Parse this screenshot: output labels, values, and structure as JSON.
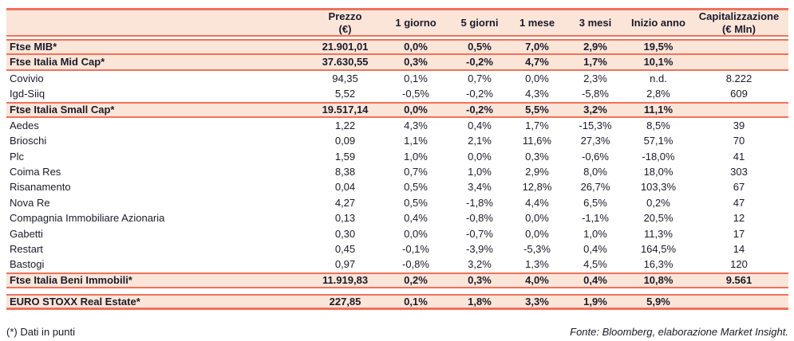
{
  "colors": {
    "accent": "#F1715B",
    "row_highlight_bg": "#FBE5D8",
    "text": "#1B1B2B"
  },
  "footer": {
    "footnote": "(*) Dati in punti",
    "source": "Fonte: Bloomberg, elaborazione Market Insight."
  },
  "table": {
    "header": {
      "bt": 3,
      "bb": 2,
      "gap": 3
    },
    "columns": [
      {
        "label": ""
      },
      {
        "label": "Prezzo\n(€)"
      },
      {
        "label": "1 giorno"
      },
      {
        "label": "5 giorni"
      },
      {
        "label": "1 mese"
      },
      {
        "label": "3 mesi"
      },
      {
        "label": "Inizio anno"
      },
      {
        "label": "Capitalizzazione\n(€ Mln)"
      }
    ],
    "rows": [
      {
        "style": "index",
        "bt": 2,
        "bb": 2,
        "gap": 0,
        "name": "Ftse MIB*",
        "values": [
          "21.901,01",
          "0,0%",
          "0,5%",
          "7,0%",
          "2,9%",
          "19,5%",
          ""
        ]
      },
      {
        "style": "index",
        "bt": 0,
        "bb": 2,
        "gap": 0,
        "name": "Ftse Italia Mid Cap*",
        "values": [
          "37.630,55",
          "0,3%",
          "-0,2%",
          "4,7%",
          "1,7%",
          "10,1%",
          ""
        ]
      },
      {
        "style": "stock",
        "bt": 0,
        "bb": 0,
        "gap": 0,
        "name": "Covivio",
        "values": [
          "94,35",
          "0,1%",
          "0,7%",
          "0,0%",
          "2,3%",
          "n.d.",
          "8.222"
        ]
      },
      {
        "style": "stock",
        "bt": 0,
        "bb": 0,
        "gap": 0,
        "name": "Igd-Siiq",
        "values": [
          "5,52",
          "-0,5%",
          "-0,2%",
          "4,3%",
          "-5,8%",
          "2,8%",
          "609"
        ]
      },
      {
        "style": "index",
        "bt": 2,
        "bb": 2,
        "gap": 0,
        "name": "Ftse Italia Small Cap*",
        "values": [
          "19.517,14",
          "0,0%",
          "-0,2%",
          "5,5%",
          "3,2%",
          "11,1%",
          ""
        ]
      },
      {
        "style": "stock",
        "bt": 0,
        "bb": 0,
        "gap": 0,
        "name": "Aedes",
        "values": [
          "1,22",
          "4,3%",
          "0,4%",
          "1,7%",
          "-15,3%",
          "8,5%",
          "39"
        ]
      },
      {
        "style": "stock",
        "bt": 0,
        "bb": 0,
        "gap": 0,
        "name": "Brioschi",
        "values": [
          "0,09",
          "1,1%",
          "2,1%",
          "11,6%",
          "27,3%",
          "57,1%",
          "70"
        ]
      },
      {
        "style": "stock",
        "bt": 0,
        "bb": 0,
        "gap": 0,
        "name": "Plc",
        "values": [
          "1,59",
          "1,0%",
          "0,0%",
          "0,3%",
          "-0,6%",
          "-18,0%",
          "41"
        ]
      },
      {
        "style": "stock",
        "bt": 0,
        "bb": 0,
        "gap": 0,
        "name": "Coima Res",
        "values": [
          "8,38",
          "0,7%",
          "1,0%",
          "2,9%",
          "8,0%",
          "18,0%",
          "303"
        ]
      },
      {
        "style": "stock",
        "bt": 0,
        "bb": 0,
        "gap": 0,
        "name": "Risanamento",
        "values": [
          "0,04",
          "0,5%",
          "3,4%",
          "12,8%",
          "26,7%",
          "103,3%",
          "67"
        ]
      },
      {
        "style": "stock",
        "bt": 0,
        "bb": 0,
        "gap": 0,
        "name": "Nova Re",
        "values": [
          "4,27",
          "0,5%",
          "-1,8%",
          "4,4%",
          "6,5%",
          "0,2%",
          "47"
        ]
      },
      {
        "style": "stock",
        "bt": 0,
        "bb": 0,
        "gap": 0,
        "name": "Compagnia Immobiliare Azionaria",
        "values": [
          "0,13",
          "0,4%",
          "-0,8%",
          "0,0%",
          "-1,1%",
          "20,5%",
          "12"
        ]
      },
      {
        "style": "stock",
        "bt": 0,
        "bb": 0,
        "gap": 0,
        "name": "Gabetti",
        "values": [
          "0,30",
          "0,0%",
          "-0,7%",
          "0,0%",
          "1,0%",
          "11,3%",
          "17"
        ]
      },
      {
        "style": "stock",
        "bt": 0,
        "bb": 0,
        "gap": 0,
        "name": "Restart",
        "values": [
          "0,45",
          "-0,1%",
          "-3,9%",
          "-5,3%",
          "0,4%",
          "164,5%",
          "14"
        ]
      },
      {
        "style": "stock",
        "bt": 0,
        "bb": 0,
        "gap": 0,
        "name": "Bastogi",
        "values": [
          "0,97",
          "-0,8%",
          "3,2%",
          "1,3%",
          "4,5%",
          "16,3%",
          "120"
        ]
      },
      {
        "style": "index",
        "bt": 2,
        "bb": 2,
        "gap": 7,
        "name": "Ftse Italia Beni Immobili*",
        "values": [
          "11.919,83",
          "0,2%",
          "0,3%",
          "4,0%",
          "0,4%",
          "10,8%",
          "9.561"
        ]
      },
      {
        "style": "index",
        "bt": 2,
        "bb": 3,
        "gap": 0,
        "name": "EURO STOXX Real Estate*",
        "values": [
          "227,85",
          "0,1%",
          "1,8%",
          "3,3%",
          "1,9%",
          "5,9%",
          ""
        ]
      }
    ]
  }
}
